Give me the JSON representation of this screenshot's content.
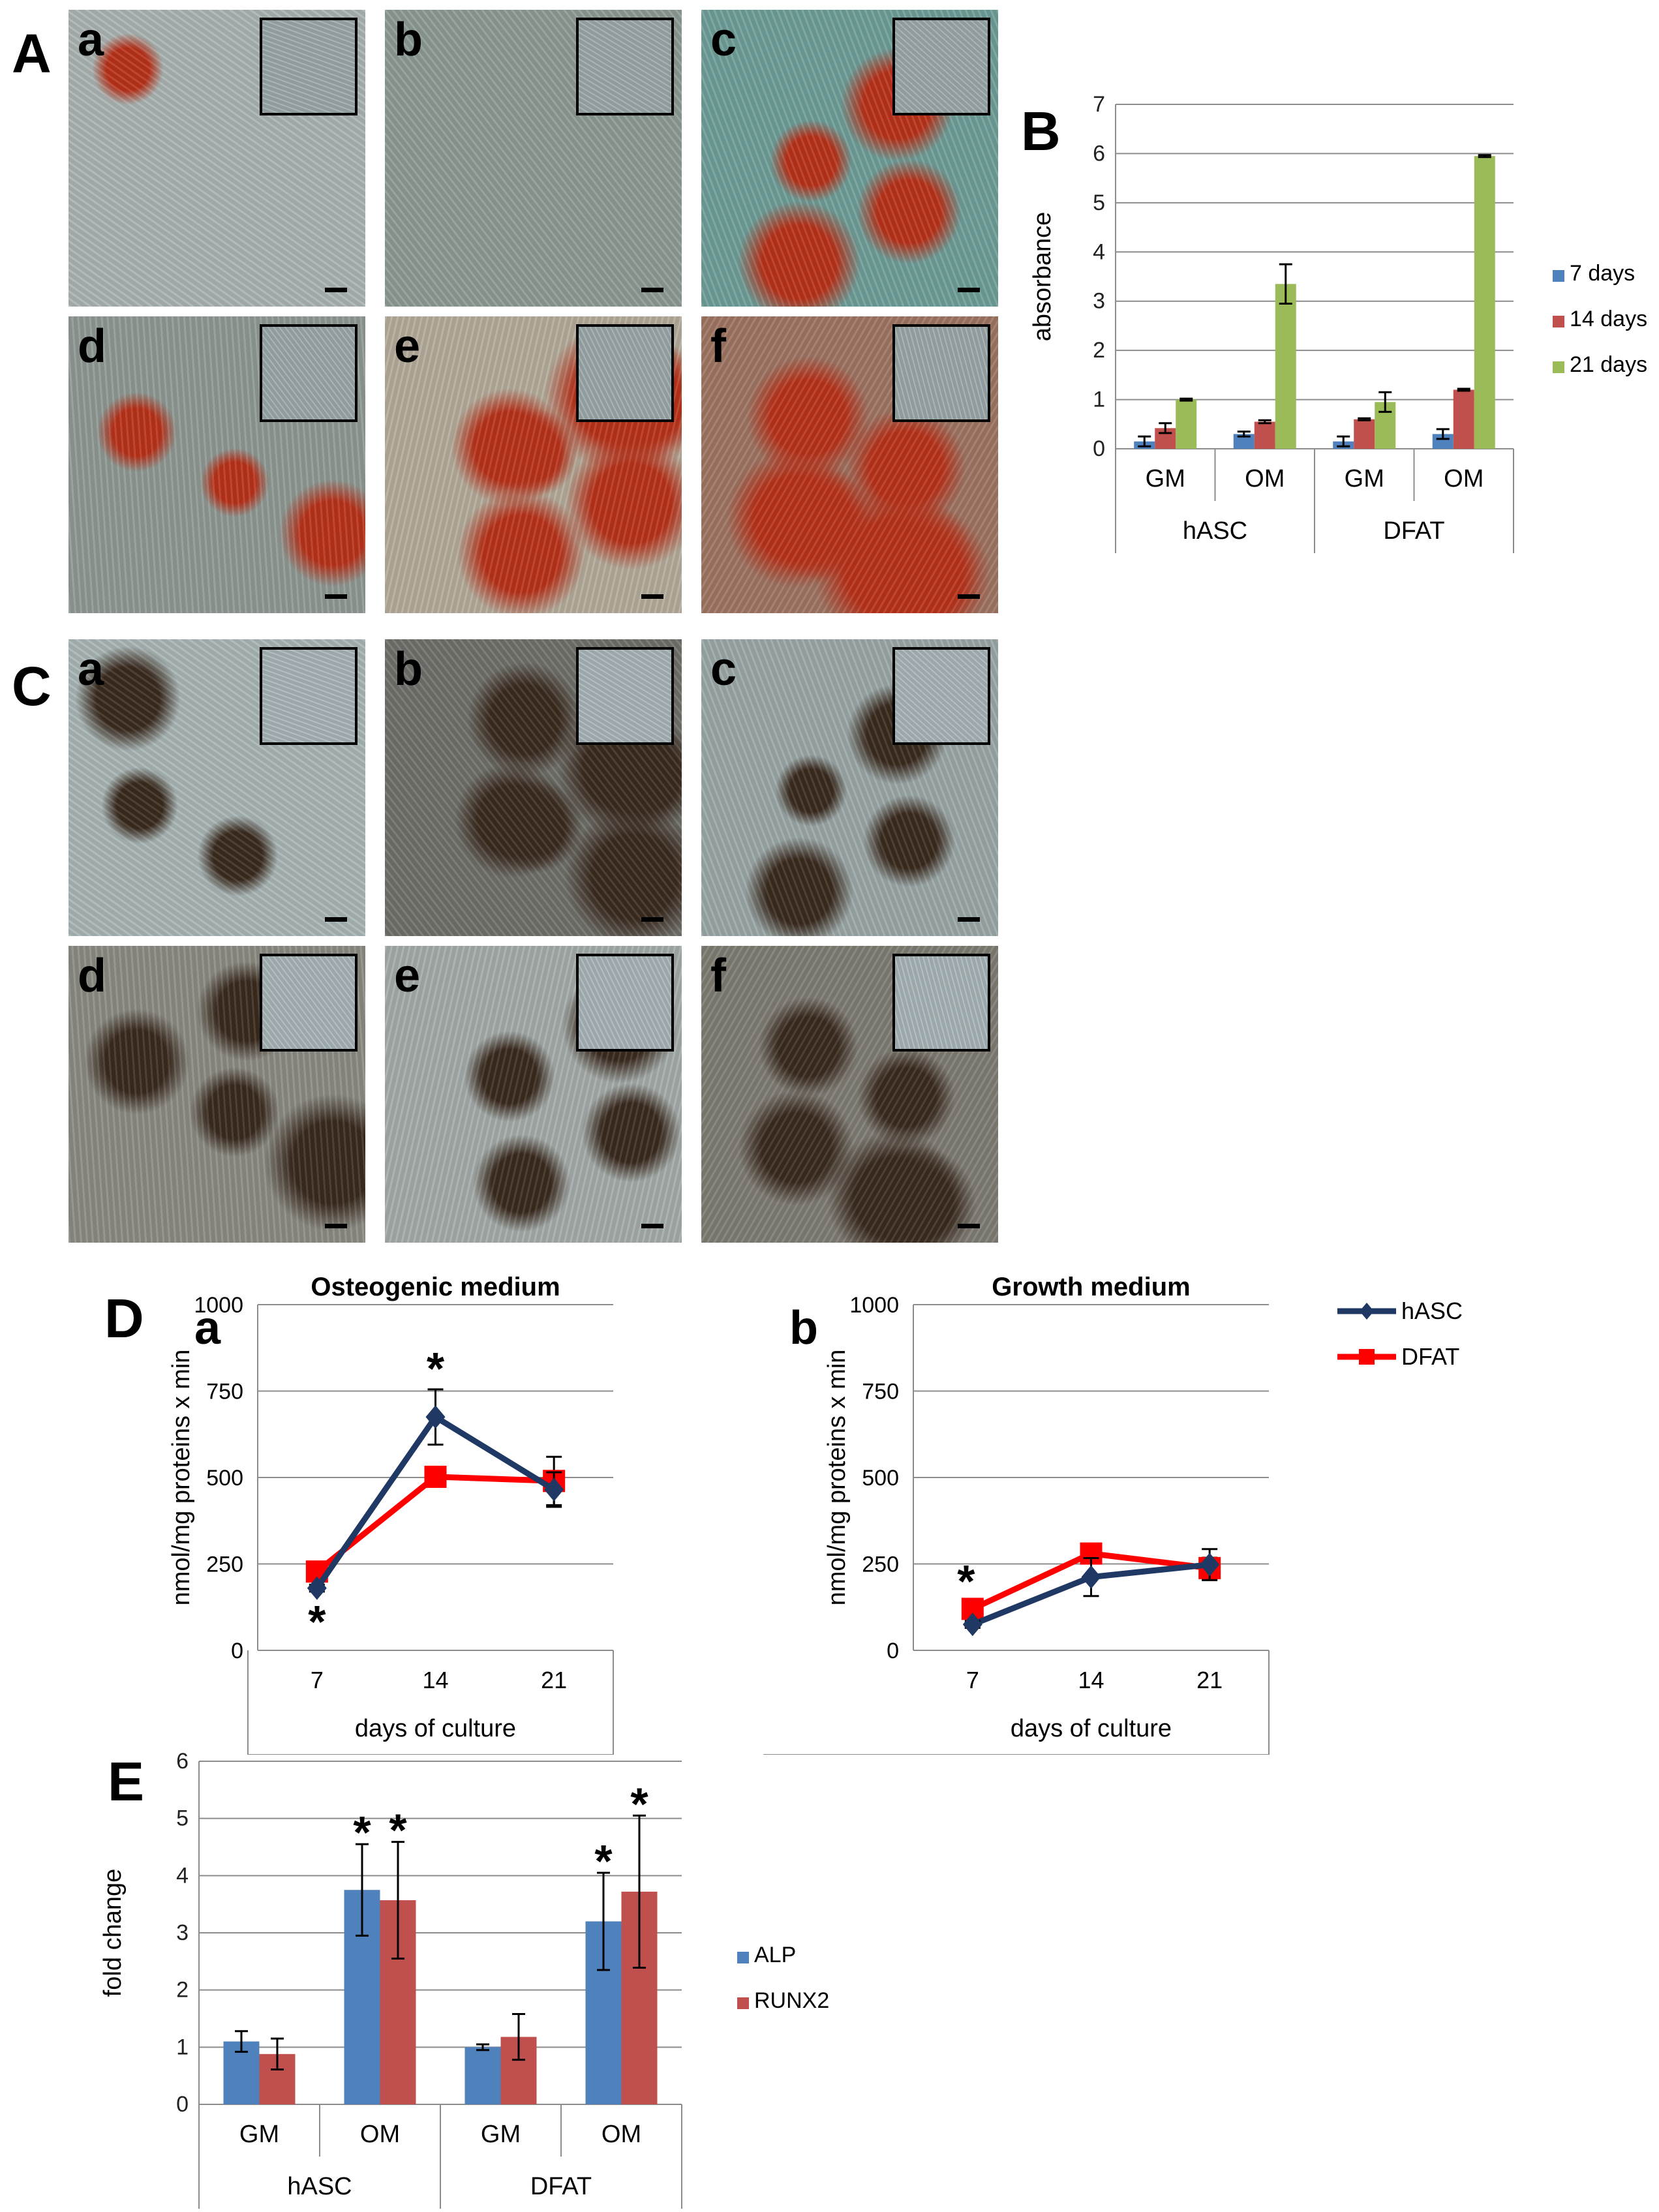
{
  "panel_letters": {
    "A": "A",
    "B": "B",
    "C": "C",
    "D": "D",
    "E": "E"
  },
  "micrographs_A": {
    "colors": {
      "base": "#9aa7a8",
      "stain": "#b8321a"
    },
    "tiles": [
      {
        "label": "a",
        "stain_level": 0.12,
        "tone": "#a9b3b1"
      },
      {
        "label": "b",
        "stain_level": 0.0,
        "tone": "#8c9a93"
      },
      {
        "label": "c",
        "stain_level": 0.55,
        "tone": "#6f9d98"
      },
      {
        "label": "d",
        "stain_level": 0.35,
        "tone": "#8e9893"
      },
      {
        "label": "e",
        "stain_level": 0.75,
        "tone": "#b3aa9a"
      },
      {
        "label": "f",
        "stain_level": 0.8,
        "tone": "#9d7463"
      }
    ]
  },
  "micrographs_C": {
    "colors": {
      "base": "#a7b4b7",
      "stain": "#3a2a1e"
    },
    "tiles": [
      {
        "label": "a",
        "stain_level": 0.35,
        "tone": "#a8b5b5"
      },
      {
        "label": "b",
        "stain_level": 0.7,
        "tone": "#6f6f6a"
      },
      {
        "label": "c",
        "stain_level": 0.45,
        "tone": "#9aa6a6"
      },
      {
        "label": "d",
        "stain_level": 0.55,
        "tone": "#8a8a82"
      },
      {
        "label": "e",
        "stain_level": 0.5,
        "tone": "#a3aaa8"
      },
      {
        "label": "f",
        "stain_level": 0.6,
        "tone": "#7e7b73"
      }
    ]
  },
  "chart_data": [
    {
      "id": "B",
      "type": "bar",
      "ylabel": "absorbance",
      "ylim": [
        0,
        7
      ],
      "yticks": [
        "0",
        "1",
        "2",
        "3",
        "4",
        "5",
        "6",
        "7"
      ],
      "categories": [
        "GM",
        "OM",
        "GM",
        "OM"
      ],
      "groups": [
        "hASC",
        "DFAT"
      ],
      "legend_position": "right",
      "series": [
        {
          "name": "7 days",
          "color": "#4f81bd",
          "values": [
            0.15,
            0.3,
            0.15,
            0.3
          ],
          "errors": [
            0.1,
            0.05,
            0.1,
            0.1
          ]
        },
        {
          "name": "14 days",
          "color": "#c0504d",
          "values": [
            0.42,
            0.55,
            0.6,
            1.2
          ],
          "errors": [
            0.1,
            0.03,
            0.02,
            0.02
          ]
        },
        {
          "name": "21 days",
          "color": "#9bbb59",
          "values": [
            1.0,
            3.35,
            0.95,
            5.95
          ],
          "errors": [
            0.02,
            0.4,
            0.2,
            0.02
          ]
        }
      ]
    },
    {
      "id": "D-a",
      "type": "line",
      "sub_label": "a",
      "title": "Osteogenic medium",
      "ylabel": "nmol/mg proteins x min",
      "xlabel": "days of culture",
      "x": [
        "7",
        "14",
        "21"
      ],
      "ylim": [
        0,
        1000
      ],
      "yticks": [
        "0",
        "250",
        "500",
        "750",
        "1000"
      ],
      "series": [
        {
          "name": "hASC",
          "color": "#1f3864",
          "marker": "diamond",
          "values": [
            180,
            675,
            465
          ],
          "errors": [
            10,
            80,
            50
          ]
        },
        {
          "name": "DFAT",
          "color": "#ff0000",
          "marker": "square",
          "values": [
            228,
            502,
            490
          ],
          "errors": [
            20,
            20,
            70
          ]
        }
      ],
      "annotations": [
        {
          "text": "*",
          "x": "14",
          "pos": "above"
        },
        {
          "text": "*",
          "x": "7",
          "pos": "below"
        }
      ]
    },
    {
      "id": "D-b",
      "type": "line",
      "sub_label": "b",
      "title": "Growth medium",
      "ylabel": "nmol/mg proteins x min",
      "xlabel": "days of culture",
      "x": [
        "7",
        "14",
        "21"
      ],
      "ylim": [
        0,
        1000
      ],
      "yticks": [
        "0",
        "250",
        "500",
        "750",
        "1000"
      ],
      "legend_position": "right",
      "series": [
        {
          "name": "hASC",
          "color": "#1f3864",
          "marker": "diamond",
          "values": [
            75,
            212,
            248
          ],
          "errors": [
            10,
            55,
            45
          ]
        },
        {
          "name": "DFAT",
          "color": "#ff0000",
          "marker": "square",
          "values": [
            120,
            280,
            238
          ],
          "errors": [
            20,
            10,
            30
          ]
        }
      ],
      "annotations": [
        {
          "text": "*",
          "x": "7",
          "pos": "above"
        }
      ]
    },
    {
      "id": "E",
      "type": "bar",
      "ylabel": "fold change",
      "ylim": [
        0,
        6
      ],
      "yticks": [
        "0",
        "1",
        "2",
        "3",
        "4",
        "5",
        "6"
      ],
      "categories": [
        "GM",
        "OM",
        "GM",
        "OM"
      ],
      "groups": [
        "hASC",
        "DFAT"
      ],
      "legend_position": "right",
      "series": [
        {
          "name": "ALP",
          "color": "#4f81bd",
          "values": [
            1.1,
            3.75,
            1.0,
            3.2
          ],
          "errors": [
            0.18,
            0.8,
            0.05,
            0.85
          ]
        },
        {
          "name": "RUNX2",
          "color": "#c0504d",
          "values": [
            0.88,
            3.57,
            1.18,
            3.72
          ],
          "errors": [
            0.27,
            1.02,
            0.4,
            1.33
          ]
        }
      ],
      "annotations": [
        {
          "text": "*",
          "category_index": 1,
          "series": "ALP"
        },
        {
          "text": "*",
          "category_index": 1,
          "series": "RUNX2"
        },
        {
          "text": "*",
          "category_index": 3,
          "series": "ALP"
        },
        {
          "text": "*",
          "category_index": 3,
          "series": "RUNX2"
        }
      ]
    }
  ]
}
